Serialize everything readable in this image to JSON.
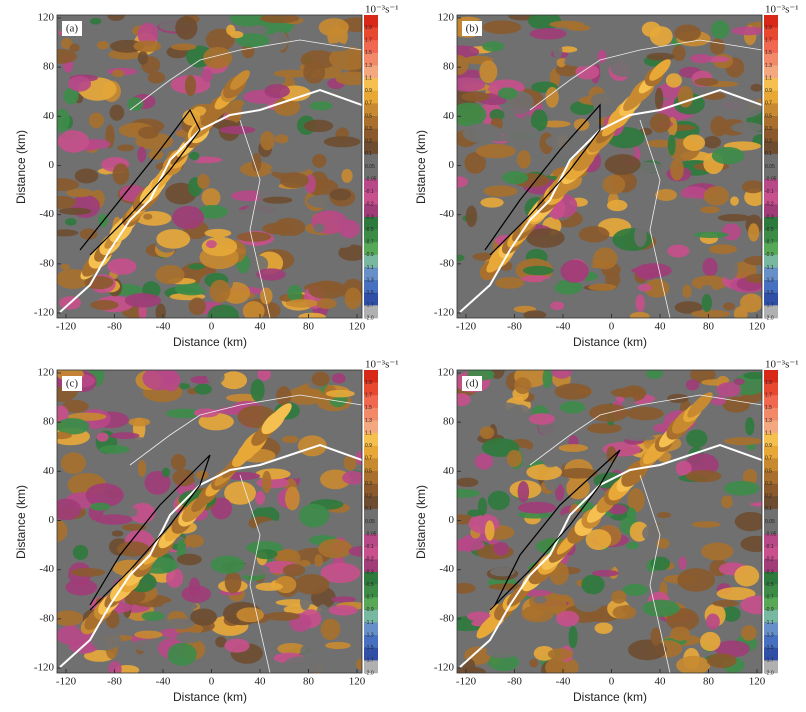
{
  "panels": [
    {
      "label": "(a)"
    },
    {
      "label": "(b)"
    },
    {
      "label": "(c)"
    },
    {
      "label": "(d)"
    }
  ],
  "x_label": "Distance (km)",
  "y_label": "Distance (km)",
  "xticks": [
    -120,
    -80,
    -40,
    0,
    40,
    80,
    120
  ],
  "yticks": [
    120,
    80,
    40,
    0,
    -40,
    -80,
    -120
  ],
  "colorbar": {
    "unit": "10⁻³s⁻¹",
    "labels": [
      "1.9",
      "1.7",
      "1.5",
      "1.3",
      "1.1",
      "0.9",
      "0.7",
      "0.5",
      "0.3",
      "0.2",
      "0.1",
      "0.05",
      "-0.05",
      "-0.1",
      "-0.2",
      "-0.3",
      "-0.5",
      "-0.7",
      "-0.9",
      "-1.1",
      "-1.3",
      "-1.5",
      "-1.7",
      "-2.0"
    ],
    "colors": [
      "#d82818",
      "#e84830",
      "#f06850",
      "#f28a6a",
      "#f4a880",
      "#f6c050",
      "#e8a838",
      "#c88a30",
      "#a8702c",
      "#8a5a2c",
      "#6e4c30",
      "#707070",
      "#707070",
      "#b84888",
      "#c8508c",
      "#a03c78",
      "#2e7a3c",
      "#3c8c48",
      "#58a858",
      "#78b8a0",
      "#6890c8",
      "#4870c0",
      "#3050a8",
      "#b0b0b0"
    ]
  }
}
